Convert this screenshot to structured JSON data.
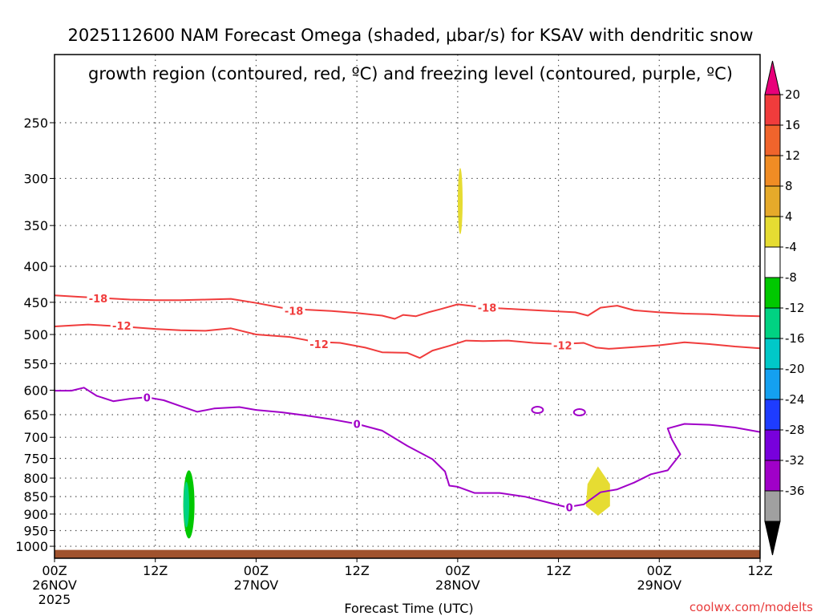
{
  "chart_data": {
    "type": "time-height cross section",
    "title_line1": "2025112600 NAM Forecast Omega (shaded, μbar/s) for KSAV with dendritic snow",
    "title_line2": "growth region (contoured, red, ºC) and freezing level (contoured, purple, ºC)",
    "xlabel": "Forecast Time (UTC)",
    "x_range_hours": [
      0,
      84
    ],
    "x_ticks": [
      {
        "hour": 0,
        "label": "00Z",
        "sublabel": "26NOV",
        "sublabel2": "2025"
      },
      {
        "hour": 12,
        "label": "12Z",
        "sublabel": "",
        "sublabel2": ""
      },
      {
        "hour": 24,
        "label": "00Z",
        "sublabel": "27NOV",
        "sublabel2": ""
      },
      {
        "hour": 36,
        "label": "12Z",
        "sublabel": "",
        "sublabel2": ""
      },
      {
        "hour": 48,
        "label": "00Z",
        "sublabel": "28NOV",
        "sublabel2": ""
      },
      {
        "hour": 60,
        "label": "12Z",
        "sublabel": "",
        "sublabel2": ""
      },
      {
        "hour": 72,
        "label": "00Z",
        "sublabel": "29NOV",
        "sublabel2": ""
      },
      {
        "hour": 84,
        "label": "12Z",
        "sublabel": "",
        "sublabel2": ""
      }
    ],
    "y_axis": "pressure (hPa)",
    "y_range_hpa": [
      1040,
      200
    ],
    "y_ticks": [
      250,
      300,
      350,
      400,
      450,
      500,
      550,
      600,
      650,
      700,
      750,
      800,
      850,
      900,
      950,
      1000
    ],
    "colorbar": {
      "label_values": [
        20,
        16,
        12,
        8,
        4,
        -4,
        -8,
        -12,
        -16,
        -20,
        -24,
        -28,
        -32,
        -36
      ],
      "bins": [
        {
          "color": "#e8007a"
        },
        {
          "color": "#f03c3c"
        },
        {
          "color": "#f0642c"
        },
        {
          "color": "#f08c24"
        },
        {
          "color": "#e6aa2a"
        },
        {
          "color": "#e6dc32"
        },
        {
          "color": "#ffffff"
        },
        {
          "color": "#00c800"
        },
        {
          "color": "#00d282"
        },
        {
          "color": "#00c8c8"
        },
        {
          "color": "#14a0f0"
        },
        {
          "color": "#1e3cff"
        },
        {
          "color": "#7800dc"
        },
        {
          "color": "#a000c8"
        },
        {
          "color": "#a0a0a0"
        },
        {
          "color": "#000000"
        }
      ]
    },
    "contours": [
      {
        "name": "dgz-minus18",
        "value": -18,
        "color": "#f03c3c",
        "labels": [
          {
            "hour": 5.2,
            "p": 444,
            "text": "-18"
          },
          {
            "hour": 28.5,
            "p": 463,
            "text": "-18"
          },
          {
            "hour": 51.5,
            "p": 458,
            "text": "-18"
          }
        ],
        "points": [
          [
            0,
            440
          ],
          [
            3,
            442
          ],
          [
            6,
            444
          ],
          [
            9,
            446
          ],
          [
            12,
            447
          ],
          [
            15,
            447
          ],
          [
            18,
            446
          ],
          [
            21,
            445
          ],
          [
            24,
            451
          ],
          [
            27,
            458
          ],
          [
            30,
            461
          ],
          [
            33,
            463
          ],
          [
            36,
            466
          ],
          [
            39,
            470
          ],
          [
            40.5,
            475
          ],
          [
            41.5,
            469
          ],
          [
            43,
            471
          ],
          [
            44.5,
            465
          ],
          [
            46,
            460
          ],
          [
            48,
            453
          ],
          [
            50,
            456
          ],
          [
            53,
            459
          ],
          [
            56,
            461
          ],
          [
            59,
            463
          ],
          [
            62,
            465
          ],
          [
            63.5,
            470
          ],
          [
            65,
            458
          ],
          [
            67,
            455
          ],
          [
            69,
            462
          ],
          [
            72,
            465
          ],
          [
            75,
            467
          ],
          [
            78,
            468
          ],
          [
            81,
            470
          ],
          [
            84,
            471
          ]
        ]
      },
      {
        "name": "dgz-minus12",
        "value": -12,
        "color": "#f03c3c",
        "labels": [
          {
            "hour": 8.0,
            "p": 486,
            "text": "-12"
          },
          {
            "hour": 31.5,
            "p": 516,
            "text": "-12"
          },
          {
            "hour": 60.5,
            "p": 518,
            "text": "-12"
          }
        ],
        "points": [
          [
            0,
            487
          ],
          [
            4,
            484
          ],
          [
            8,
            487
          ],
          [
            12,
            491
          ],
          [
            15,
            493
          ],
          [
            18,
            494
          ],
          [
            21,
            490
          ],
          [
            24,
            500
          ],
          [
            28,
            504
          ],
          [
            31,
            512
          ],
          [
            34,
            514
          ],
          [
            37,
            522
          ],
          [
            39,
            530
          ],
          [
            42,
            531
          ],
          [
            43.5,
            540
          ],
          [
            45,
            527
          ],
          [
            47,
            519
          ],
          [
            49,
            510
          ],
          [
            51,
            511
          ],
          [
            54,
            510
          ],
          [
            57,
            514
          ],
          [
            60,
            516
          ],
          [
            63,
            514
          ],
          [
            64.5,
            522
          ],
          [
            66,
            524
          ],
          [
            69,
            521
          ],
          [
            72,
            518
          ],
          [
            75,
            513
          ],
          [
            78,
            516
          ],
          [
            81,
            520
          ],
          [
            84,
            523
          ]
        ]
      },
      {
        "name": "freezing-level-0c",
        "value": 0,
        "color": "#a000c8",
        "labels": [
          {
            "hour": 11.0,
            "p": 614,
            "text": "0"
          },
          {
            "hour": 36.0,
            "p": 670,
            "text": "0"
          },
          {
            "hour": 61.3,
            "p": 880,
            "text": "0"
          }
        ],
        "points": [
          [
            0,
            601
          ],
          [
            2,
            601
          ],
          [
            3.5,
            595
          ],
          [
            5,
            611
          ],
          [
            7,
            622
          ],
          [
            9,
            617
          ],
          [
            11,
            614
          ],
          [
            13,
            620
          ],
          [
            15,
            632
          ],
          [
            17,
            644
          ],
          [
            19,
            637
          ],
          [
            22,
            634
          ],
          [
            24,
            640
          ],
          [
            27,
            645
          ],
          [
            30,
            652
          ],
          [
            33,
            660
          ],
          [
            36,
            670
          ],
          [
            39,
            685
          ],
          [
            42,
            720
          ],
          [
            45,
            752
          ],
          [
            46.5,
            783
          ],
          [
            47,
            820
          ],
          [
            48,
            823
          ],
          [
            50,
            840
          ],
          [
            53,
            840
          ],
          [
            56,
            850
          ],
          [
            59,
            868
          ],
          [
            61,
            880
          ],
          [
            63,
            872
          ],
          [
            65,
            838
          ],
          [
            67,
            830
          ],
          [
            69,
            812
          ],
          [
            71,
            790
          ],
          [
            73,
            780
          ],
          [
            74.5,
            740
          ],
          [
            73.5,
            705
          ],
          [
            73,
            680
          ],
          [
            75,
            670
          ],
          [
            78,
            672
          ],
          [
            81,
            678
          ],
          [
            84,
            688
          ]
        ]
      }
    ],
    "closed_contours": [
      {
        "name": "freezing-level-cell-a",
        "hour": 57.5,
        "p": 640,
        "color": "#a000c8"
      },
      {
        "name": "freezing-level-cell-b",
        "hour": 62.5,
        "p": 645,
        "color": "#a000c8"
      }
    ],
    "shaded_cells": [
      {
        "name": "omega-yellow-upper",
        "value_bin": "4 to 8",
        "color": "#e6dc32",
        "hour": 48.3,
        "p_top": 290,
        "p_bottom": 360
      },
      {
        "name": "omega-yellow-lower",
        "value_bin": "4 to 8",
        "color": "#e6dc32",
        "hour": 64.7,
        "p_top": 770,
        "p_bottom": 905
      },
      {
        "name": "omega-green-outer",
        "value_bin": "-4 to -8",
        "color": "#00c800",
        "hour": 16,
        "p_top": 780,
        "p_bottom": 975
      },
      {
        "name": "omega-green-inner",
        "value_bin": "-8 to -12",
        "color": "#00d282",
        "hour": 15.7,
        "p_top": 810,
        "p_bottom": 940
      }
    ],
    "terrain_fill": {
      "name": "ground",
      "color": "#a0522d",
      "p_top": 1012
    }
  },
  "footer": {
    "xlabel": "Forecast Time (UTC)",
    "credit": "coolwx.com/modelts"
  }
}
